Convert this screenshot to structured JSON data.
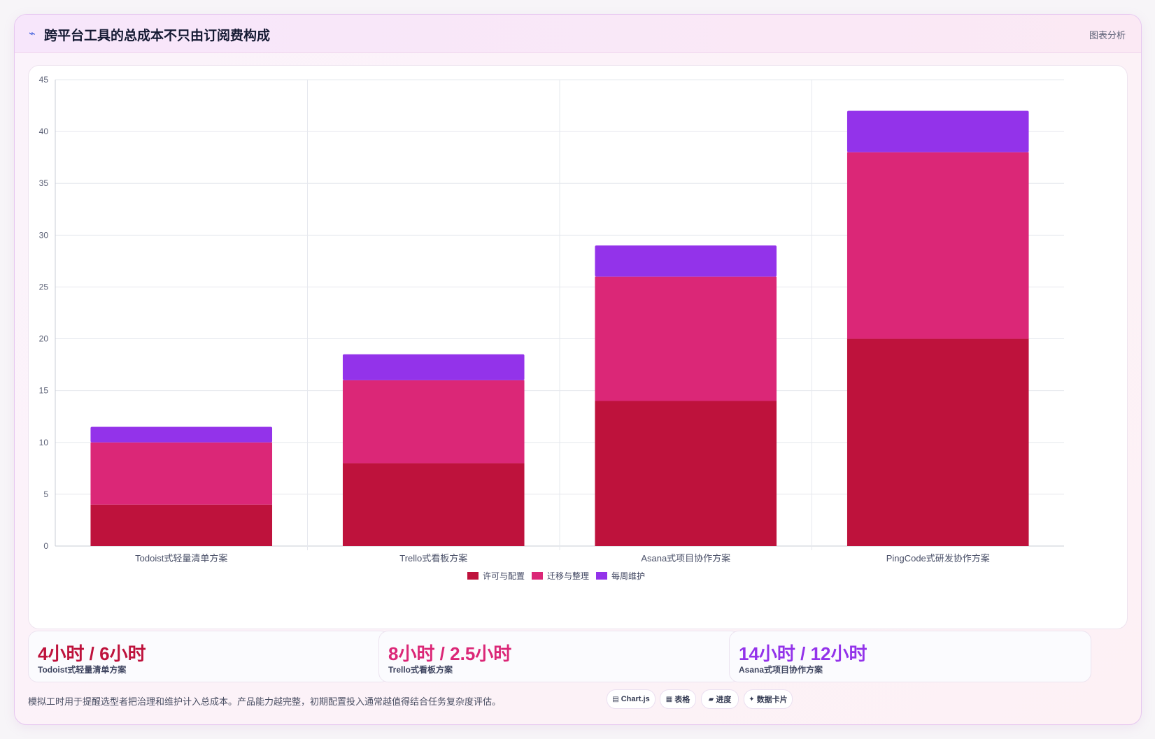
{
  "header": {
    "title": "跨平台工具的总成本不只由订阅费构成",
    "tag": "图表分析",
    "icon": "trend-icon"
  },
  "chart_data": {
    "type": "bar",
    "stacked": true,
    "categories": [
      "Todoist式轻量清单方案",
      "Trello式看板方案",
      "Asana式项目协作方案",
      "PingCode式研发协作方案"
    ],
    "series": [
      {
        "name": "许可与配置",
        "color": "#be123c",
        "values": [
          4,
          8,
          14,
          20
        ]
      },
      {
        "name": "迁移与整理",
        "color": "#db2777",
        "values": [
          6,
          8,
          12,
          18
        ]
      },
      {
        "name": "每周维护",
        "color": "#9333ea",
        "values": [
          1.5,
          2.5,
          3,
          4
        ]
      }
    ],
    "ylim": [
      0,
      45
    ],
    "yticks": [
      0,
      5,
      10,
      15,
      20,
      25,
      30,
      35,
      40,
      45
    ],
    "grid": true,
    "legend": "bottom"
  },
  "kpis": [
    {
      "value": "4小时 / 6小时",
      "label": "Todoist式轻量清单方案",
      "color": "#be123c"
    },
    {
      "value": "8小时 / 2.5小时",
      "label": "Trello式看板方案",
      "color": "#db2777"
    },
    {
      "value": "14小时 / 12小时",
      "label": "Asana式项目协作方案",
      "color": "#9333ea"
    }
  ],
  "footnote": "模拟工时用于提醒选型者把治理和维护计入总成本。产品能力越完整，初期配置投入通常越值得结合任务复杂度评估。",
  "chips": [
    {
      "icon": "▤",
      "label": "Chart.js"
    },
    {
      "icon": "▦",
      "label": "表格"
    },
    {
      "icon": "▰",
      "label": "进度"
    },
    {
      "icon": "✦",
      "label": "数据卡片"
    }
  ]
}
